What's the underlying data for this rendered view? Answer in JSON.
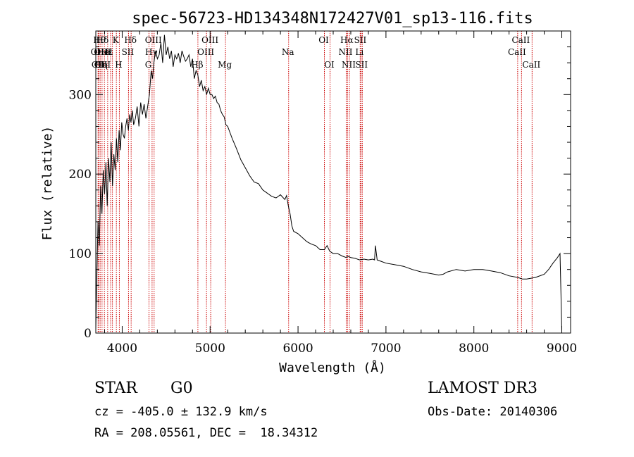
{
  "chart_data": {
    "type": "line",
    "title": "spec-56723-HD134348N172427V01_sp13-116.fits",
    "xlabel": "Wavelength (Å)",
    "ylabel": "Flux (relative)",
    "xlim": [
      3700,
      9100
    ],
    "ylim": [
      0,
      380
    ],
    "xticks": [
      4000,
      5000,
      6000,
      7000,
      8000,
      9000
    ],
    "xtick_labels": [
      "4000",
      "5000",
      "6000",
      "7000",
      "8000",
      "9000"
    ],
    "yticks": [
      0,
      100,
      200,
      300
    ],
    "ytick_labels": [
      "0",
      "100",
      "200",
      "300"
    ],
    "grid": false,
    "line_color": "#000000",
    "marker_color": "#cc0000",
    "series": [
      {
        "x": [
          3700,
          3710,
          3725,
          3740,
          3755,
          3770,
          3785,
          3800,
          3815,
          3830,
          3845,
          3860,
          3875,
          3890,
          3905,
          3920,
          3935,
          3950,
          3965,
          3980,
          3995,
          4010,
          4025,
          4040,
          4055,
          4070,
          4085,
          4100,
          4115,
          4130,
          4150,
          4170,
          4190,
          4210,
          4230,
          4250,
          4270,
          4290,
          4310,
          4330,
          4345,
          4360,
          4380,
          4400,
          4420,
          4440,
          4460,
          4480,
          4500,
          4520,
          4540,
          4560,
          4580,
          4600,
          4620,
          4640,
          4660,
          4680,
          4700,
          4720,
          4740,
          4760,
          4780,
          4800,
          4820,
          4840,
          4860,
          4880,
          4900,
          4920,
          4940,
          4960,
          4980,
          5000,
          5020,
          5040,
          5060,
          5080,
          5100,
          5120,
          5140,
          5160,
          5180,
          5200,
          5250,
          5300,
          5350,
          5400,
          5450,
          5500,
          5550,
          5600,
          5650,
          5700,
          5750,
          5800,
          5850,
          5870,
          5890,
          5910,
          5930,
          5950,
          6000,
          6050,
          6100,
          6150,
          6200,
          6250,
          6300,
          6330,
          6360,
          6400,
          6450,
          6500,
          6550,
          6563,
          6600,
          6650,
          6700,
          6750,
          6800,
          6850,
          6870,
          6880,
          6900,
          6950,
          7000,
          7100,
          7200,
          7300,
          7400,
          7500,
          7600,
          7650,
          7700,
          7800,
          7900,
          8000,
          8100,
          8200,
          8300,
          8400,
          8500,
          8550,
          8600,
          8700,
          8800,
          8850,
          8900,
          8950,
          8980,
          8990,
          9000
        ],
        "y": [
          5,
          60,
          140,
          110,
          185,
          150,
          205,
          175,
          215,
          160,
          220,
          190,
          240,
          185,
          225,
          205,
          245,
          215,
          255,
          230,
          265,
          250,
          245,
          260,
          270,
          255,
          275,
          265,
          280,
          262,
          270,
          285,
          260,
          290,
          275,
          288,
          270,
          285,
          300,
          330,
          320,
          340,
          355,
          345,
          350,
          365,
          340,
          375,
          350,
          360,
          345,
          355,
          335,
          350,
          345,
          352,
          340,
          355,
          348,
          342,
          345,
          350,
          335,
          345,
          320,
          330,
          325,
          310,
          318,
          305,
          310,
          300,
          308,
          300,
          300,
          295,
          298,
          290,
          288,
          280,
          275,
          272,
          262,
          260,
          245,
          232,
          218,
          208,
          198,
          190,
          188,
          180,
          176,
          172,
          170,
          174,
          168,
          173,
          160,
          150,
          135,
          128,
          125,
          120,
          115,
          112,
          110,
          105,
          105,
          110,
          103,
          100,
          100,
          97,
          95,
          97,
          95,
          94,
          92,
          93,
          92,
          93,
          92,
          110,
          92,
          90,
          88,
          86,
          84,
          80,
          77,
          75,
          73,
          74,
          77,
          80,
          78,
          80,
          80,
          78,
          76,
          72,
          70,
          68,
          68,
          70,
          74,
          80,
          88,
          95,
          100,
          50,
          2
        ]
      }
    ],
    "line_markers": [
      {
        "x": 3726,
        "label": "OII",
        "row": 2
      },
      {
        "x": 3734,
        "label": "CII",
        "row": 3
      },
      {
        "x": 3750,
        "label": "Hθ",
        "row": 1
      },
      {
        "x": 3771,
        "label": "Hη",
        "row": 3
      },
      {
        "x": 3798,
        "label": "",
        "row": 3
      },
      {
        "x": 3835,
        "label": "Hε",
        "row": 2
      },
      {
        "x": 3869,
        "label": "",
        "row": 2
      },
      {
        "x": 3889,
        "label": "",
        "row": 2
      },
      {
        "x": 3934,
        "label": "K",
        "row": 1
      },
      {
        "x": 3968,
        "label": "H",
        "row": 3
      },
      {
        "x": 4072,
        "label": "SII",
        "row": 2
      },
      {
        "x": 4102,
        "label": "Hδ",
        "row": 1
      },
      {
        "x": 4305,
        "label": "G",
        "row": 3
      },
      {
        "x": 4340,
        "label": "Hγ",
        "row": 2
      },
      {
        "x": 4363,
        "label": "OIII",
        "row": 1
      },
      {
        "x": 4861,
        "label": "Hβ",
        "row": 3
      },
      {
        "x": 4959,
        "label": "OIII",
        "row": 2
      },
      {
        "x": 5007,
        "label": "OIII",
        "row": 1
      },
      {
        "x": 5175,
        "label": "Mg",
        "row": 3
      },
      {
        "x": 5893,
        "label": "Na",
        "row": 2
      },
      {
        "x": 6300,
        "label": "OI",
        "row": 1
      },
      {
        "x": 6364,
        "label": "OI",
        "row": 3
      },
      {
        "x": 6548,
        "label": "NII",
        "row": 2
      },
      {
        "x": 6563,
        "label": "Hα",
        "row": 1
      },
      {
        "x": 6584,
        "label": "NII",
        "row": 3
      },
      {
        "x": 6707,
        "label": "Li",
        "row": 2
      },
      {
        "x": 6716,
        "label": "SII",
        "row": 1
      },
      {
        "x": 6731,
        "label": "SII",
        "row": 3
      },
      {
        "x": 8498,
        "label": "CaII",
        "row": 2
      },
      {
        "x": 8542,
        "label": "CaII",
        "row": 1
      },
      {
        "x": 8662,
        "label": "CaII",
        "row": 3
      }
    ],
    "marker_group_labels": [
      {
        "text": "Hδ",
        "x": 3775,
        "row": 1
      },
      {
        "text": "OIII",
        "x": 3775,
        "row": 2
      },
      {
        "text": "HeI",
        "x": 3800,
        "row": 2
      },
      {
        "text": "CIII",
        "x": 3775,
        "row": 3
      }
    ]
  },
  "info": {
    "object_class": "STAR",
    "subclass": "G0",
    "survey": "LAMOST DR3",
    "redshift": "cz = -405.0 ± 132.9 km/s",
    "obs_date": "Obs-Date: 20140306",
    "coords": "RA = 208.05561, DEC =  18.34312"
  }
}
